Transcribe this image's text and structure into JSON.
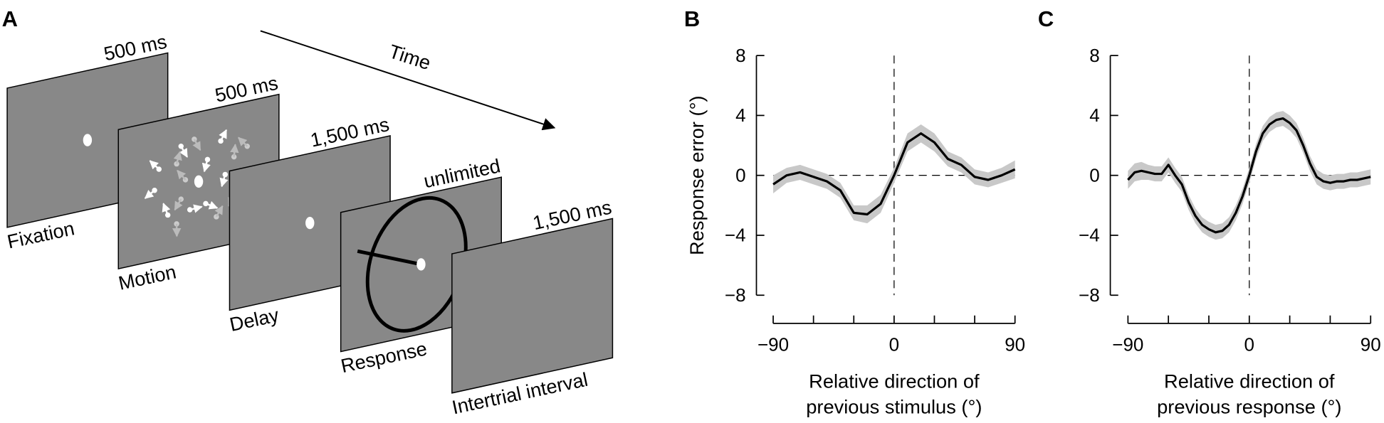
{
  "panel_a": {
    "label": "A",
    "time_label": "Time",
    "screens": [
      {
        "name": "Fixation",
        "duration": "500 ms"
      },
      {
        "name": "Motion",
        "duration": "500 ms"
      },
      {
        "name": "Delay",
        "duration": "1,500 ms"
      },
      {
        "name": "Response",
        "duration": "unlimited"
      },
      {
        "name": "Intertrial interval",
        "duration": "1,500 ms"
      }
    ]
  },
  "chart_data": [
    {
      "type": "line",
      "panel_label": "B",
      "ylabel": "Response error (°)",
      "xlabel": [
        "Relative direction of",
        "previous stimulus (°)"
      ],
      "x": [
        -90,
        -80,
        -70,
        -60,
        -50,
        -40,
        -30,
        -20,
        -10,
        0,
        10,
        20,
        30,
        40,
        50,
        60,
        70,
        80,
        90
      ],
      "series": [
        {
          "color": "#000000",
          "values": [
            -0.6,
            0,
            0.2,
            -0.1,
            -0.4,
            -1.0,
            -2.5,
            -2.6,
            -1.9,
            0,
            2.2,
            2.8,
            2.2,
            1.1,
            0.7,
            -0.1,
            -0.3,
            0,
            0.4
          ],
          "band_lower": [
            -1.2,
            -0.5,
            -0.3,
            -0.6,
            -0.9,
            -1.5,
            -3.0,
            -3.2,
            -2.5,
            -0.5,
            1.6,
            2.2,
            1.6,
            0.6,
            0.2,
            -0.6,
            -0.8,
            -0.5,
            -0.2
          ],
          "band_upper": [
            0.0,
            0.5,
            0.7,
            0.4,
            0.1,
            -0.5,
            -2.0,
            -2.0,
            -1.3,
            0.5,
            2.8,
            3.4,
            2.8,
            1.6,
            1.2,
            0.4,
            0.2,
            0.5,
            1.0
          ],
          "band_color": "#c8c8c8"
        }
      ],
      "xlim": [
        -90,
        90
      ],
      "ylim": [
        -8,
        8
      ],
      "xticks": [
        {
          "value": -90,
          "label": "−90"
        },
        0,
        90
      ],
      "xminorticks": [
        -60,
        -30,
        30,
        60
      ],
      "yticks": [
        {
          "value": -8,
          "label": "−8"
        },
        {
          "value": -4,
          "label": "−4"
        },
        0,
        4,
        8
      ]
    },
    {
      "type": "line",
      "panel_label": "C",
      "xlabel": [
        "Relative direction of",
        "previous response (°)"
      ],
      "x": [
        -90,
        -85,
        -80,
        -75,
        -70,
        -65,
        -60,
        -55,
        -50,
        -45,
        -40,
        -35,
        -30,
        -25,
        -20,
        -15,
        -10,
        -5,
        0,
        5,
        10,
        15,
        20,
        25,
        30,
        35,
        40,
        45,
        50,
        55,
        60,
        65,
        70,
        75,
        80,
        85,
        90
      ],
      "series": [
        {
          "color": "#000000",
          "values": [
            -0.3,
            0.2,
            0.3,
            0.2,
            0.1,
            0.1,
            0.7,
            0,
            -0.6,
            -1.8,
            -2.7,
            -3.3,
            -3.6,
            -3.8,
            -3.7,
            -3.3,
            -2.5,
            -1.4,
            0,
            1.6,
            2.8,
            3.4,
            3.7,
            3.8,
            3.5,
            3.0,
            2.0,
            0.8,
            -0.1,
            -0.4,
            -0.5,
            -0.4,
            -0.4,
            -0.3,
            -0.3,
            -0.2,
            -0.1
          ],
          "band_lower": [
            -0.9,
            -0.4,
            -0.3,
            -0.3,
            -0.4,
            -0.4,
            0.2,
            -0.5,
            -1.1,
            -2.3,
            -3.2,
            -3.8,
            -4.1,
            -4.3,
            -4.2,
            -3.8,
            -3.0,
            -1.9,
            -0.5,
            1.1,
            2.3,
            2.9,
            3.2,
            3.3,
            3.0,
            2.5,
            1.5,
            0.3,
            -0.6,
            -0.9,
            -1.0,
            -0.9,
            -0.9,
            -0.8,
            -0.8,
            -0.7,
            -0.6
          ],
          "band_upper": [
            0.3,
            0.8,
            0.9,
            0.7,
            0.6,
            0.6,
            1.2,
            0.5,
            -0.1,
            -1.3,
            -2.2,
            -2.8,
            -3.1,
            -3.3,
            -3.2,
            -2.8,
            -2.0,
            -0.9,
            0.5,
            2.1,
            3.3,
            3.9,
            4.2,
            4.3,
            4.0,
            3.5,
            2.5,
            1.3,
            0.4,
            0.1,
            0.0,
            0.1,
            0.1,
            0.2,
            0.2,
            0.3,
            0.4
          ],
          "band_color": "#c8c8c8"
        }
      ],
      "xlim": [
        -90,
        90
      ],
      "ylim": [
        -8,
        8
      ],
      "xticks": [
        {
          "value": -90,
          "label": "−90"
        },
        0,
        90
      ],
      "xminorticks": [
        -60,
        -30,
        30,
        60
      ],
      "yticks": [
        {
          "value": -8,
          "label": "−8"
        },
        {
          "value": -4,
          "label": "−4"
        },
        0,
        4,
        8
      ]
    }
  ]
}
